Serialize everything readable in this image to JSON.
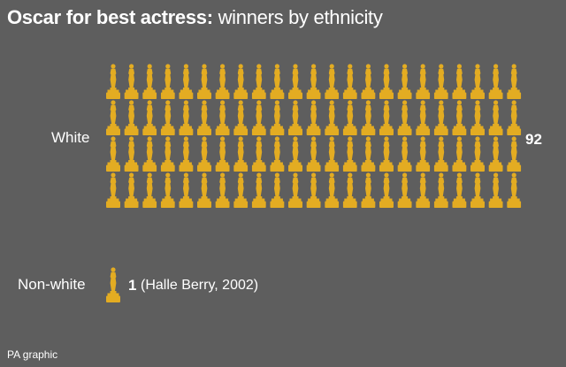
{
  "title": {
    "bold": "Oscar for best actress:",
    "light": "winners by ethnicity"
  },
  "source": "PA graphic",
  "colors": {
    "background": "#5e5e5e",
    "icon": "#e3ac22",
    "text": "#ffffff"
  },
  "icon": "oscar-statuette-icon",
  "chart_data": {
    "type": "pictogram",
    "title": "Oscar for best actress: winners by ethnicity",
    "categories": [
      "White",
      "Non-white"
    ],
    "values": [
      92,
      1
    ],
    "value_labels": [
      "92",
      "1"
    ],
    "annotations": [
      "",
      "(Halle Berry, 2002)"
    ],
    "icon_rows_shown": [
      4,
      1
    ],
    "icon_columns_shown": [
      23,
      1
    ]
  }
}
